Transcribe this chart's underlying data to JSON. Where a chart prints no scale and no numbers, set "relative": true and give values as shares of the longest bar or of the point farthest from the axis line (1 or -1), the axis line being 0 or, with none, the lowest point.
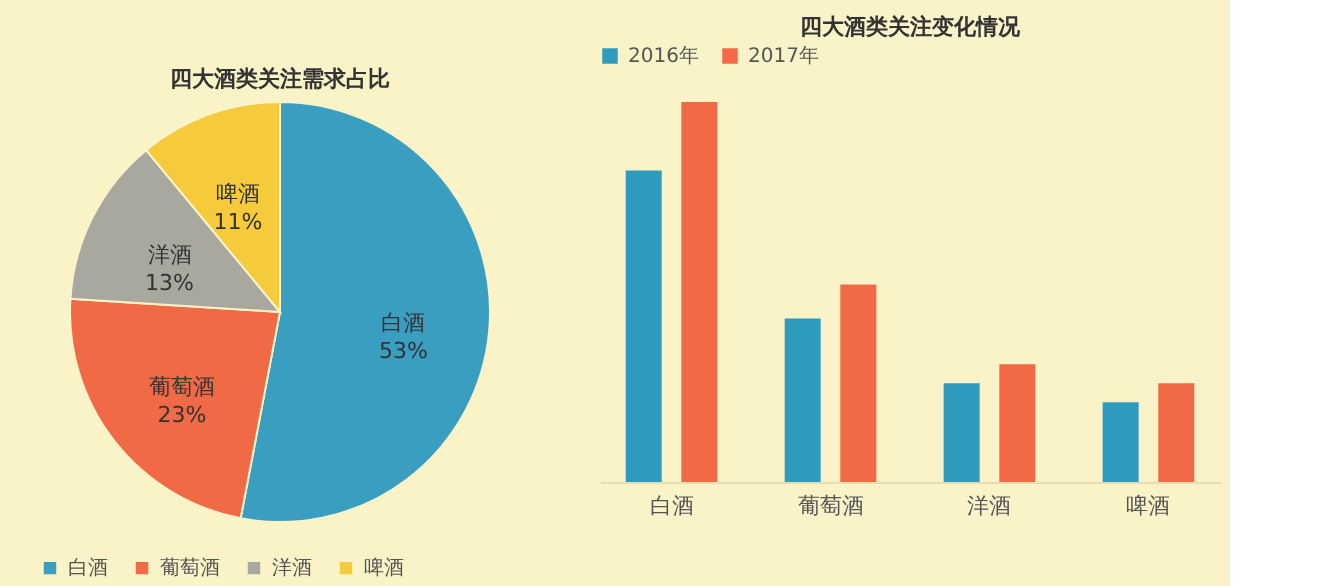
{
  "chart_data": [
    {
      "type": "pie",
      "title": "四大酒类关注需求占比",
      "categories": [
        "白酒",
        "葡萄酒",
        "洋酒",
        "啤酒"
      ],
      "values": [
        53,
        23,
        13,
        11
      ],
      "colors": [
        "#3a9ec0",
        "#f06a45",
        "#a9a89e",
        "#f5cb3c"
      ],
      "value_labels": [
        "53%",
        "23%",
        "13%",
        "11%"
      ],
      "legend": "bottom"
    },
    {
      "type": "bar",
      "title": "四大酒类关注变化情况",
      "categories": [
        "白酒",
        "葡萄酒",
        "洋酒",
        "啤酒"
      ],
      "relative": true,
      "legend": "top",
      "series": [
        {
          "name": "2016年",
          "color": "#2f9bbf",
          "values": [
            0.82,
            0.43,
            0.26,
            0.21
          ]
        },
        {
          "name": "2017年",
          "color": "#f26a45",
          "values": [
            1,
            0.52,
            0.31,
            0.26
          ]
        }
      ]
    }
  ]
}
